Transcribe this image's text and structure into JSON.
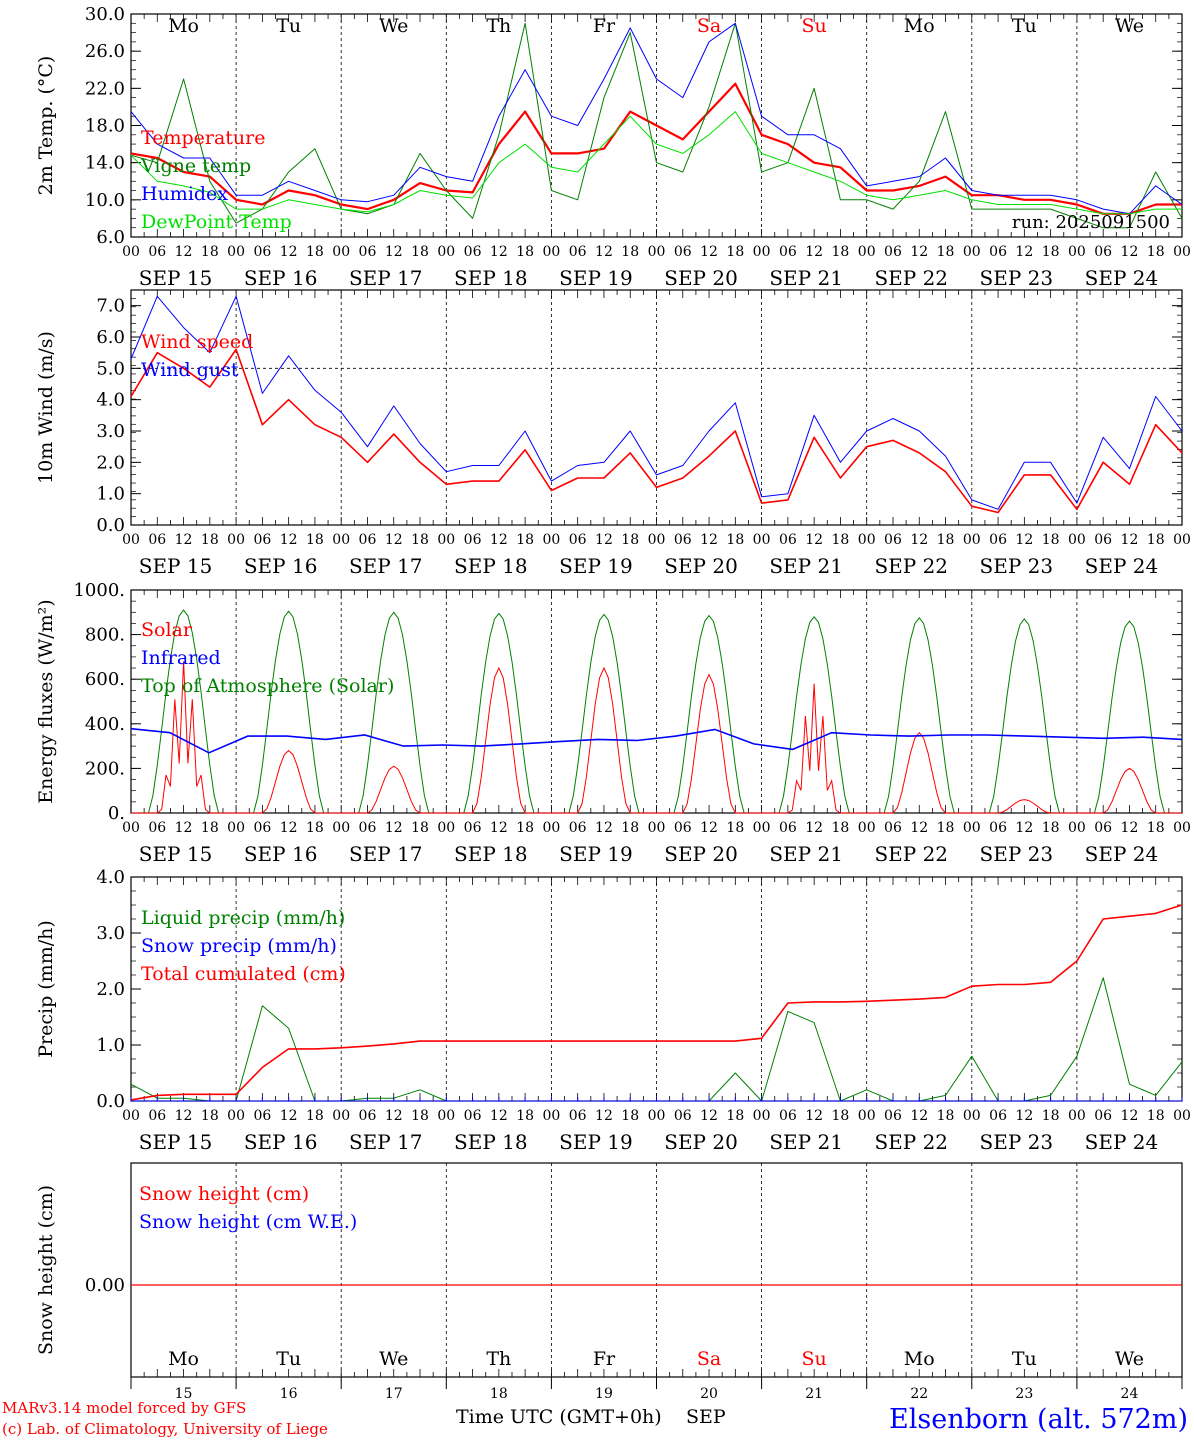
{
  "colors": {
    "red": "#ff0000",
    "green": "#008000",
    "blue": "#0000ff",
    "lightgreen": "#00e000",
    "grid": "#000000",
    "weekend": "#ff0000",
    "station": "#0000ff"
  },
  "days_top": [
    "Mo",
    "Tu",
    "We",
    "Th",
    "Fr",
    "Sa",
    "Su",
    "Mo",
    "Tu",
    "We"
  ],
  "weekend_idx": [
    5,
    6
  ],
  "date_labels": [
    "SEP 15",
    "SEP 16",
    "SEP 17",
    "SEP 18",
    "SEP 19",
    "SEP 20",
    "SEP 21",
    "SEP 22",
    "SEP 23",
    "SEP 24"
  ],
  "hour_ticks": [
    "00",
    "06",
    "12",
    "18"
  ],
  "day_numbers": [
    "15",
    "16",
    "17",
    "18",
    "19",
    "20",
    "21",
    "22",
    "23",
    "24"
  ],
  "footer": {
    "credit1": "MARv3.14 model forced by GFS",
    "credit2": "(c) Lab. of Climatology, University of Liege",
    "axis_title": "Time UTC (GMT+0h)",
    "month": "SEP",
    "station": "Elsenborn (alt. 572m)"
  },
  "chart_data": [
    {
      "type": "line",
      "ylabel": "2m Temp. (°C)",
      "ylim": [
        6,
        30
      ],
      "yticks": [
        "6.0",
        "10.0",
        "14.0",
        "18.0",
        "22.0",
        "26.0",
        "30.0"
      ],
      "annotation": "run: 2025091500",
      "x_hours": [
        0,
        6,
        12,
        18,
        24,
        30,
        36,
        42,
        48,
        54,
        60,
        66,
        72,
        78,
        84,
        90,
        96,
        102,
        108,
        114,
        120,
        126,
        132,
        138,
        144,
        150,
        156,
        162,
        168,
        174,
        180,
        186,
        192,
        198,
        204,
        210,
        216,
        222,
        228,
        234,
        240
      ],
      "series": [
        {
          "name": "Temperature",
          "color": "red",
          "width": 2.2,
          "values": [
            15,
            14.5,
            13,
            12.5,
            10,
            9.5,
            11,
            10.5,
            9.5,
            9,
            10,
            11.8,
            11,
            10.8,
            16,
            19.5,
            15,
            15,
            15.5,
            19.5,
            18,
            16.5,
            19.5,
            22.5,
            17,
            16,
            14,
            13.5,
            11,
            11,
            11.5,
            12.5,
            10.5,
            10.5,
            10,
            10,
            9.5,
            8.5,
            8.5,
            9.5,
            9.5
          ]
        },
        {
          "name": "Vigne temp",
          "color": "green",
          "width": 1,
          "values": [
            14.8,
            14,
            23,
            12,
            7.5,
            9,
            13,
            15.5,
            9,
            8.5,
            9.5,
            15,
            11,
            8,
            17,
            29,
            11,
            10,
            21,
            28,
            14,
            13,
            20,
            29,
            13,
            14,
            22,
            10,
            10,
            9,
            12,
            19.5,
            9,
            9,
            9,
            9,
            8,
            7,
            7,
            13,
            8
          ]
        },
        {
          "name": "Humidex",
          "color": "blue",
          "width": 1,
          "values": [
            19.5,
            16,
            14.5,
            14.5,
            10.5,
            10.5,
            12,
            11,
            10,
            9.8,
            10.5,
            13.5,
            12.5,
            12,
            19,
            24,
            19,
            18,
            23,
            28.5,
            23,
            21,
            27,
            29,
            19,
            17,
            17,
            15.5,
            11.5,
            12,
            12.5,
            14.5,
            11,
            10.5,
            10.5,
            10.5,
            10,
            9,
            8.5,
            11.5,
            9.5
          ]
        },
        {
          "name": "DewPoint Temp",
          "color": "lightgreen",
          "width": 1,
          "values": [
            14.8,
            12,
            11.5,
            10.8,
            9,
            9,
            10,
            9.5,
            9,
            8.7,
            9.5,
            11,
            10.5,
            10.2,
            14,
            16,
            13.5,
            13,
            16,
            19,
            16,
            15,
            17,
            19.5,
            15,
            14,
            13,
            12,
            10.5,
            10,
            10.5,
            11,
            10,
            9.5,
            9.5,
            9.5,
            9,
            8.5,
            8.5,
            9,
            9
          ]
        }
      ]
    },
    {
      "type": "line",
      "ylabel": "10m Wind (m/s)",
      "ylim": [
        0,
        7.5
      ],
      "yticks": [
        "0.0",
        "1.0",
        "2.0",
        "3.0",
        "4.0",
        "5.0",
        "6.0",
        "7.0"
      ],
      "refline": 5.0,
      "x_hours": [
        0,
        6,
        12,
        18,
        24,
        30,
        36,
        42,
        48,
        54,
        60,
        66,
        72,
        78,
        84,
        90,
        96,
        102,
        108,
        114,
        120,
        126,
        132,
        138,
        144,
        150,
        156,
        162,
        168,
        174,
        180,
        186,
        192,
        198,
        204,
        210,
        216,
        222,
        228,
        234,
        240
      ],
      "series": [
        {
          "name": "Wind speed",
          "color": "red",
          "width": 1.6,
          "values": [
            4.1,
            5.5,
            5,
            4.4,
            5.6,
            3.2,
            4,
            3.2,
            2.8,
            2,
            2.9,
            2,
            1.3,
            1.4,
            1.4,
            2.4,
            1.1,
            1.5,
            1.5,
            2.3,
            1.2,
            1.5,
            2.2,
            3,
            0.7,
            0.8,
            2.8,
            1.5,
            2.5,
            2.7,
            2.3,
            1.7,
            0.6,
            0.4,
            1.6,
            1.6,
            0.5,
            2,
            1.3,
            3.2,
            2.3
          ]
        },
        {
          "name": "Wind gust",
          "color": "blue",
          "width": 1,
          "values": [
            5.3,
            7.3,
            6.3,
            5.5,
            7.3,
            4.2,
            5.4,
            4.3,
            3.6,
            2.5,
            3.8,
            2.6,
            1.7,
            1.9,
            1.9,
            3,
            1.4,
            1.9,
            2,
            3,
            1.6,
            1.9,
            3,
            3.9,
            0.9,
            1,
            3.5,
            2,
            3,
            3.4,
            3,
            2.2,
            0.8,
            0.5,
            2,
            2,
            0.7,
            2.8,
            1.8,
            4.1,
            3
          ]
        }
      ]
    },
    {
      "type": "line",
      "ylabel": "Energy fluxes (W/m²)",
      "ylim": [
        0,
        1000
      ],
      "yticks": [
        "0.",
        "200.",
        "400.",
        "600.",
        "800.",
        "1000."
      ],
      "series": [
        {
          "name": "Solar",
          "color": "red",
          "width": 1,
          "peaks": [
            680,
            280,
            210,
            650,
            650,
            620,
            580,
            360,
            60,
            200
          ]
        },
        {
          "name": "Infrared",
          "color": "blue",
          "width": 1.6,
          "values": [
            378,
            360,
            270,
            345,
            345,
            330,
            350,
            300,
            305,
            300,
            310,
            320,
            330,
            325,
            345,
            375,
            310,
            285,
            360,
            350,
            345,
            350,
            350,
            345,
            340,
            335,
            340,
            330
          ]
        },
        {
          "name": "Top of Atmosphere (Solar)",
          "color": "green",
          "width": 1,
          "peaks": [
            910,
            905,
            900,
            895,
            890,
            885,
            880,
            875,
            870,
            860
          ]
        }
      ]
    },
    {
      "type": "line",
      "ylabel": "Precip (mm/h)",
      "ylim": [
        0,
        4
      ],
      "yticks": [
        "0.0",
        "1.0",
        "2.0",
        "3.0",
        "4.0"
      ],
      "x_hours": [
        0,
        6,
        12,
        18,
        24,
        30,
        36,
        42,
        48,
        54,
        60,
        66,
        72,
        78,
        84,
        90,
        96,
        102,
        108,
        114,
        120,
        126,
        132,
        138,
        144,
        150,
        156,
        162,
        168,
        174,
        180,
        186,
        192,
        198,
        204,
        210,
        216,
        222,
        228,
        234,
        240
      ],
      "series": [
        {
          "name": "Liquid precip (mm/h)",
          "color": "green",
          "width": 1,
          "values": [
            0.3,
            0.05,
            0.05,
            0,
            0,
            1.7,
            1.3,
            0,
            0,
            0.05,
            0.05,
            0.2,
            0,
            0,
            0,
            0,
            0,
            0,
            0,
            0,
            0,
            0,
            0,
            0.5,
            0,
            1.6,
            1.4,
            0,
            0.2,
            0,
            0,
            0.1,
            0.8,
            0,
            0,
            0.1,
            0.8,
            2.2,
            0.3,
            0.1,
            0.7
          ]
        },
        {
          "name": "Snow precip (mm/h)",
          "color": "blue",
          "width": 1,
          "values": [
            0,
            0,
            0,
            0,
            0,
            0,
            0,
            0,
            0,
            0,
            0,
            0,
            0,
            0,
            0,
            0,
            0,
            0,
            0,
            0,
            0,
            0,
            0,
            0,
            0,
            0,
            0,
            0,
            0,
            0,
            0,
            0,
            0,
            0,
            0,
            0,
            0,
            0,
            0,
            0,
            0
          ]
        },
        {
          "name": "Total cumulated (cm)",
          "color": "red",
          "width": 1.6,
          "values": [
            0.02,
            0.1,
            0.12,
            0.12,
            0.12,
            0.6,
            0.93,
            0.93,
            0.95,
            0.98,
            1.02,
            1.07,
            1.07,
            1.07,
            1.07,
            1.07,
            1.07,
            1.07,
            1.07,
            1.07,
            1.07,
            1.07,
            1.07,
            1.07,
            1.12,
            1.75,
            1.77,
            1.77,
            1.78,
            1.8,
            1.82,
            1.85,
            2.05,
            2.08,
            2.08,
            2.12,
            2.5,
            3.25,
            3.3,
            3.35,
            3.5
          ]
        }
      ]
    },
    {
      "type": "line",
      "ylabel": "Snow height (cm)",
      "yticks": [
        "0.00"
      ],
      "series": [
        {
          "name": "Snow height (cm)",
          "color": "red",
          "width": 1.2,
          "values": [
            0,
            0
          ]
        },
        {
          "name": "Snow height (cm W.E.)",
          "color": "blue",
          "width": 1,
          "values": [
            0,
            0
          ]
        }
      ]
    }
  ]
}
